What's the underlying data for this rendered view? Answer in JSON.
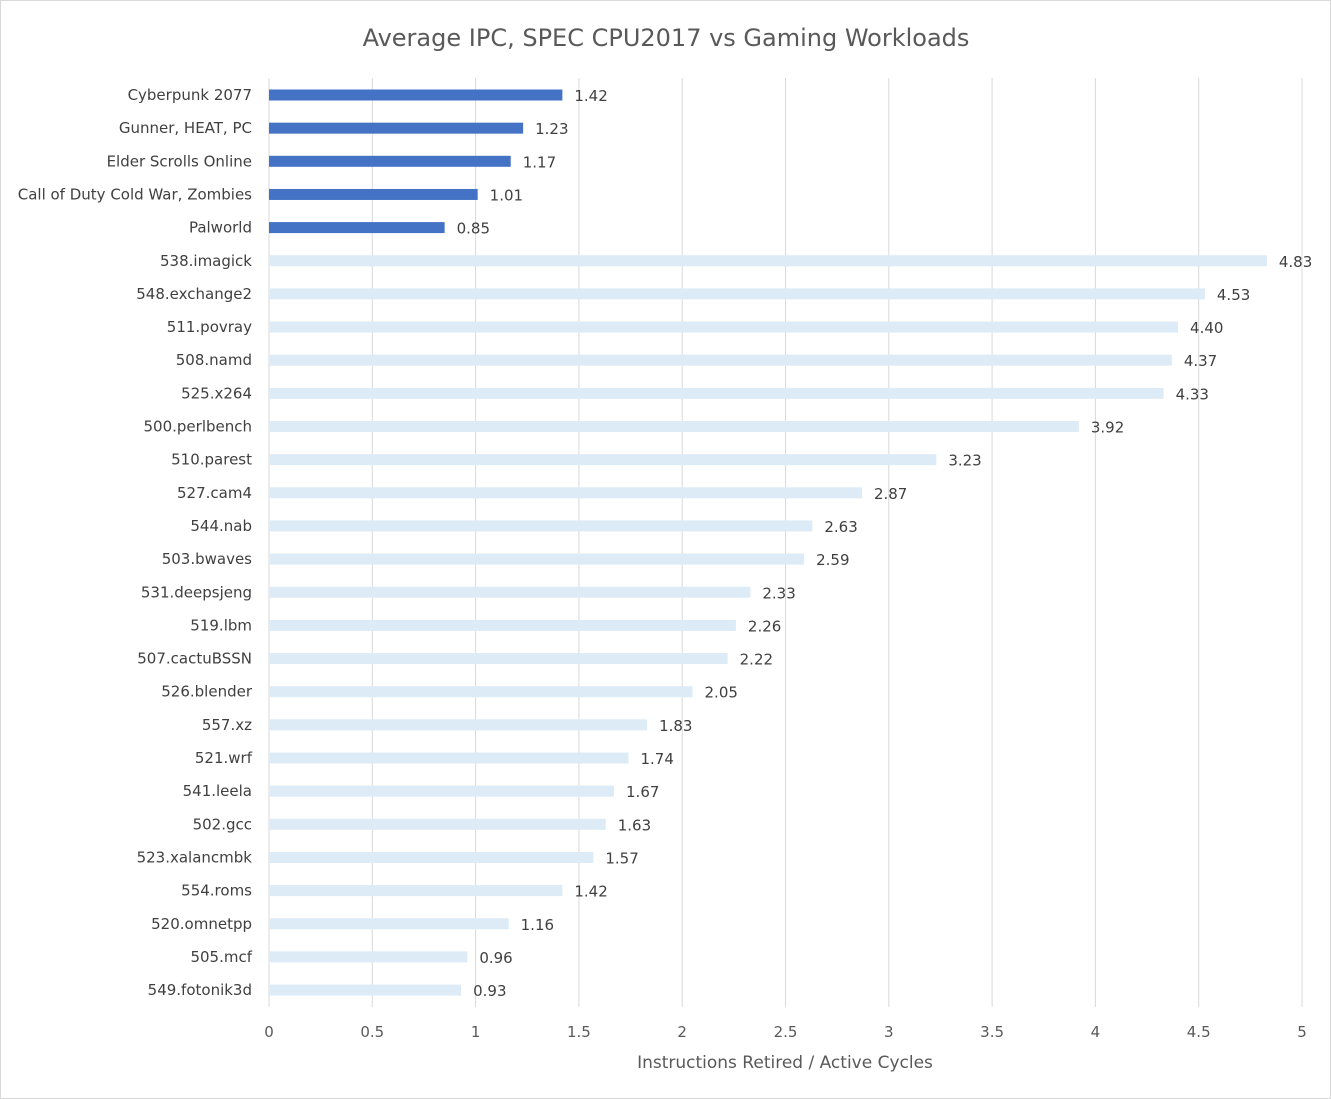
{
  "chart_data": {
    "type": "bar",
    "orientation": "horizontal",
    "title": "Average IPC, SPEC CPU2017 vs Gaming Workloads",
    "xlabel": "Instructions Retired / Active Cycles",
    "ylabel": "",
    "xlim": [
      0,
      5
    ],
    "xticks": [
      "0",
      "0.5",
      "1",
      "1.5",
      "2",
      "2.5",
      "3",
      "3.5",
      "4",
      "4.5",
      "5"
    ],
    "grid": true,
    "legend": "none",
    "colors": {
      "gaming": "#4472c4",
      "spec": "#ddebf7"
    },
    "bars": [
      {
        "label": "Cyberpunk 2077",
        "value": 1.42,
        "display": "1.42",
        "group": "gaming"
      },
      {
        "label": "Gunner, HEAT, PC",
        "value": 1.23,
        "display": "1.23",
        "group": "gaming"
      },
      {
        "label": "Elder Scrolls Online",
        "value": 1.17,
        "display": "1.17",
        "group": "gaming"
      },
      {
        "label": "Call of Duty Cold War, Zombies",
        "value": 1.01,
        "display": "1.01",
        "group": "gaming"
      },
      {
        "label": "Palworld",
        "value": 0.85,
        "display": "0.85",
        "group": "gaming"
      },
      {
        "label": "538.imagick",
        "value": 4.83,
        "display": "4.83",
        "group": "spec"
      },
      {
        "label": "548.exchange2",
        "value": 4.53,
        "display": "4.53",
        "group": "spec"
      },
      {
        "label": "511.povray",
        "value": 4.4,
        "display": "4.40",
        "group": "spec"
      },
      {
        "label": "508.namd",
        "value": 4.37,
        "display": "4.37",
        "group": "spec"
      },
      {
        "label": "525.x264",
        "value": 4.33,
        "display": "4.33",
        "group": "spec"
      },
      {
        "label": "500.perlbench",
        "value": 3.92,
        "display": "3.92",
        "group": "spec"
      },
      {
        "label": "510.parest",
        "value": 3.23,
        "display": "3.23",
        "group": "spec"
      },
      {
        "label": "527.cam4",
        "value": 2.87,
        "display": "2.87",
        "group": "spec"
      },
      {
        "label": "544.nab",
        "value": 2.63,
        "display": "2.63",
        "group": "spec"
      },
      {
        "label": "503.bwaves",
        "value": 2.59,
        "display": "2.59",
        "group": "spec"
      },
      {
        "label": "531.deepsjeng",
        "value": 2.33,
        "display": "2.33",
        "group": "spec"
      },
      {
        "label": "519.lbm",
        "value": 2.26,
        "display": "2.26",
        "group": "spec"
      },
      {
        "label": "507.cactuBSSN",
        "value": 2.22,
        "display": "2.22",
        "group": "spec"
      },
      {
        "label": "526.blender",
        "value": 2.05,
        "display": "2.05",
        "group": "spec"
      },
      {
        "label": "557.xz",
        "value": 1.83,
        "display": "1.83",
        "group": "spec"
      },
      {
        "label": "521.wrf",
        "value": 1.74,
        "display": "1.74",
        "group": "spec"
      },
      {
        "label": "541.leela",
        "value": 1.67,
        "display": "1.67",
        "group": "spec"
      },
      {
        "label": "502.gcc",
        "value": 1.63,
        "display": "1.63",
        "group": "spec"
      },
      {
        "label": "523.xalancmbk",
        "value": 1.57,
        "display": "1.57",
        "group": "spec"
      },
      {
        "label": "554.roms",
        "value": 1.42,
        "display": "1.42",
        "group": "spec"
      },
      {
        "label": "520.omnetpp",
        "value": 1.16,
        "display": "1.16",
        "group": "spec"
      },
      {
        "label": "505.mcf",
        "value": 0.96,
        "display": "0.96",
        "group": "spec"
      },
      {
        "label": "549.fotonik3d",
        "value": 0.93,
        "display": "0.93",
        "group": "spec"
      }
    ]
  }
}
